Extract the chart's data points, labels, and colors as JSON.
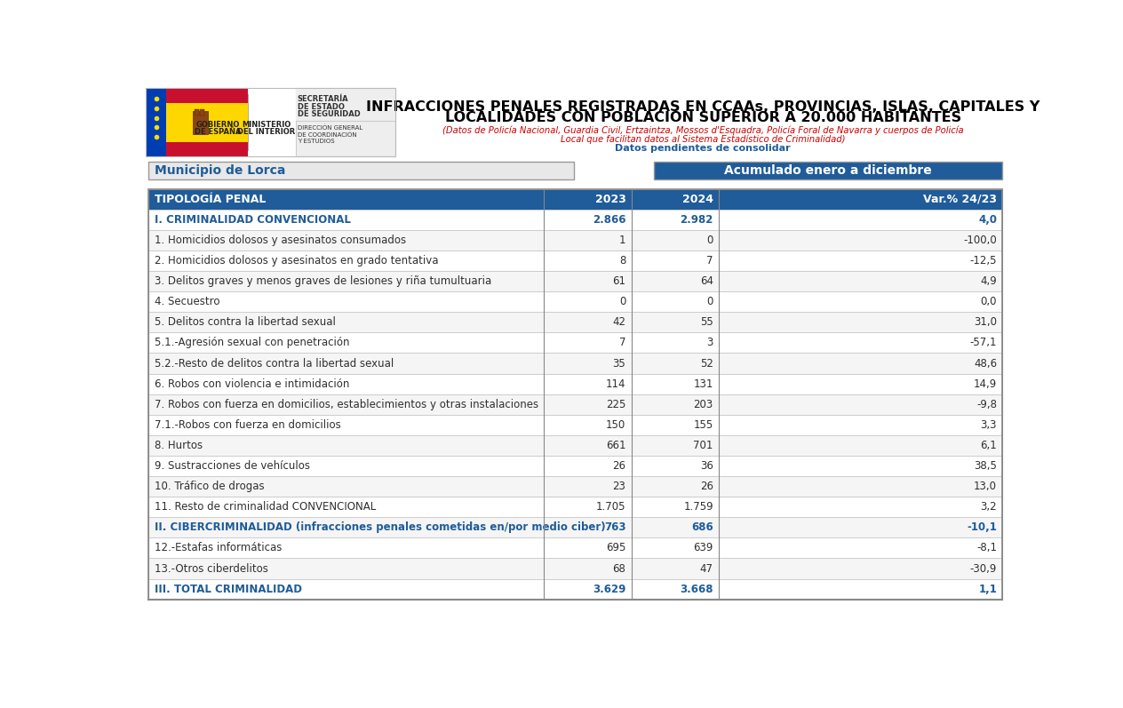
{
  "title_line1": "INFRACCIONES PENALES REGISTRADAS EN CCAAs, PROVINCIAS, ISLAS, CAPITALES Y",
  "title_line2": "LOCALIDADES CON POBLACIÓN SUPERIOR A 20.000 HABITANTES",
  "subtitle1": "(Datos de Policía Nacional, Guardia Civil, Ertzaintza, Mossos d'Esquadra, Policía Foral de Navarra y cuerpos de Policía",
  "subtitle2": "Local que facilitan datos al Sistema Estadístico de Criminalidad)",
  "subtitle3": "Datos pendientes de consolidar",
  "municipio": "Municipio de Lorca",
  "periodo": "Acumulado enero a diciembre",
  "col_headers": [
    "TIPOLOGÍA PENAL",
    "2023",
    "2024",
    "Var.% 24/23"
  ],
  "rows": [
    {
      "label": "I. CRIMINALIDAD CONVENCIONAL",
      "v2023": "2.866",
      "v2024": "2.982",
      "var": "4,0",
      "bold": true
    },
    {
      "label": "1. Homicidios dolosos y asesinatos consumados",
      "v2023": "1",
      "v2024": "0",
      "var": "-100,0",
      "bold": false
    },
    {
      "label": "2. Homicidios dolosos y asesinatos en grado tentativa",
      "v2023": "8",
      "v2024": "7",
      "var": "-12,5",
      "bold": false
    },
    {
      "label": "3. Delitos graves y menos graves de lesiones y riña tumultuaria",
      "v2023": "61",
      "v2024": "64",
      "var": "4,9",
      "bold": false
    },
    {
      "label": "4. Secuestro",
      "v2023": "0",
      "v2024": "0",
      "var": "0,0",
      "bold": false
    },
    {
      "label": "5. Delitos contra la libertad sexual",
      "v2023": "42",
      "v2024": "55",
      "var": "31,0",
      "bold": false
    },
    {
      "label": "5.1.-Agresión sexual con penetración",
      "v2023": "7",
      "v2024": "3",
      "var": "-57,1",
      "bold": false
    },
    {
      "label": "5.2.-Resto de delitos contra la libertad sexual",
      "v2023": "35",
      "v2024": "52",
      "var": "48,6",
      "bold": false
    },
    {
      "label": "6. Robos con violencia e intimidación",
      "v2023": "114",
      "v2024": "131",
      "var": "14,9",
      "bold": false
    },
    {
      "label": "7. Robos con fuerza en domicilios, establecimientos y otras instalaciones",
      "v2023": "225",
      "v2024": "203",
      "var": "-9,8",
      "bold": false
    },
    {
      "label": "7.1.-Robos con fuerza en domicilios",
      "v2023": "150",
      "v2024": "155",
      "var": "3,3",
      "bold": false
    },
    {
      "label": "8. Hurtos",
      "v2023": "661",
      "v2024": "701",
      "var": "6,1",
      "bold": false
    },
    {
      "label": "9. Sustracciones de vehículos",
      "v2023": "26",
      "v2024": "36",
      "var": "38,5",
      "bold": false
    },
    {
      "label": "10. Tráfico de drogas",
      "v2023": "23",
      "v2024": "26",
      "var": "13,0",
      "bold": false
    },
    {
      "label": "11. Resto de criminalidad CONVENCIONAL",
      "v2023": "1.705",
      "v2024": "1.759",
      "var": "3,2",
      "bold": false
    },
    {
      "label": "II. CIBERCRIMINALIDAD (infracciones penales cometidas en/por medio ciber)",
      "v2023": "763",
      "v2024": "686",
      "var": "-10,1",
      "bold": true
    },
    {
      "label": "12.-Estafas informáticas",
      "v2023": "695",
      "v2024": "639",
      "var": "-8,1",
      "bold": false
    },
    {
      "label": "13.-Otros ciberdelitos",
      "v2023": "68",
      "v2024": "47",
      "var": "-30,9",
      "bold": false
    },
    {
      "label": "III. TOTAL CRIMINALIDAD",
      "v2023": "3.629",
      "v2024": "3.668",
      "var": "1,1",
      "bold": true
    }
  ],
  "header_bg": "#1F5C99",
  "title_color": "#000000",
  "subtitle_color": "#CC0000",
  "subtitle3_color": "#1F5C99",
  "municipio_color": "#1F5C99",
  "periodo_color": "#FFFFFF",
  "periodo_bg": "#1F5C99",
  "bold_text_color": "#1F5C99",
  "normal_text_color": "#2F2F2F",
  "box_bg": "#E8E8E8",
  "box_border": "#999999"
}
